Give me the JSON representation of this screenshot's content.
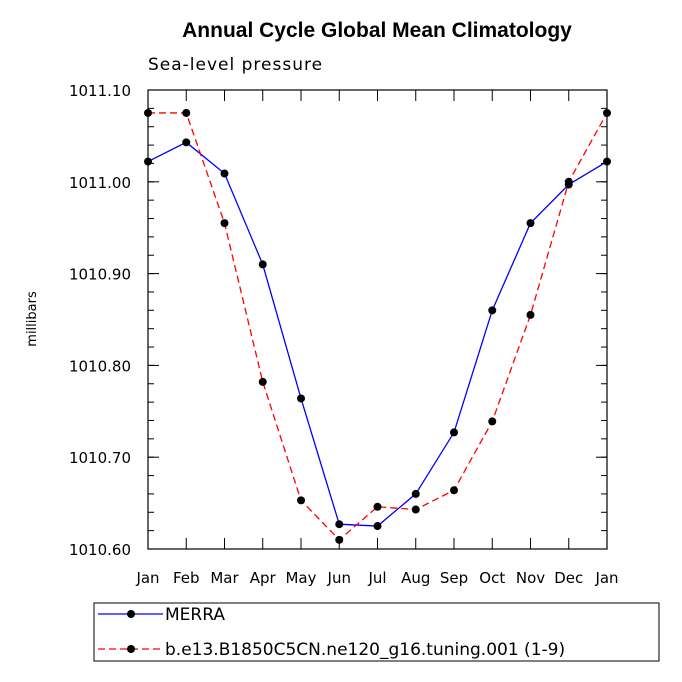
{
  "chart_data": {
    "type": "line",
    "title": "Annual Cycle Global Mean Climatology",
    "subtitle": "Sea-level pressure",
    "xlabel": "",
    "ylabel": "millibars",
    "categories": [
      "Jan",
      "Feb",
      "Mar",
      "Apr",
      "May",
      "Jun",
      "Jul",
      "Aug",
      "Sep",
      "Oct",
      "Nov",
      "Dec",
      "Jan"
    ],
    "ylim": [
      1010.6,
      1011.1
    ],
    "yticks": [
      1010.6,
      1010.7,
      1010.8,
      1010.9,
      1011.0,
      1011.1
    ],
    "ytick_labels": [
      "1010.60",
      "1010.70",
      "1010.80",
      "1010.90",
      "1011.00",
      "1011.10"
    ],
    "series": [
      {
        "name": "MERRA",
        "color": "#0000ff",
        "dash": "solid",
        "values": [
          1011.022,
          1011.043,
          1011.009,
          1010.91,
          1010.764,
          1010.627,
          1010.625,
          1010.66,
          1010.727,
          1010.86,
          1010.955,
          1010.997,
          1011.022
        ]
      },
      {
        "name": "b.e13.B1850C5CN.ne120_g16.tuning.001 (1-9)",
        "color": "#ff0000",
        "dash": "dashed",
        "values": [
          1011.075,
          1011.075,
          1010.955,
          1010.782,
          1010.653,
          1010.61,
          1010.646,
          1010.643,
          1010.664,
          1010.739,
          1010.855,
          1011.0,
          1011.075
        ]
      }
    ],
    "legend_position": "bottom"
  }
}
